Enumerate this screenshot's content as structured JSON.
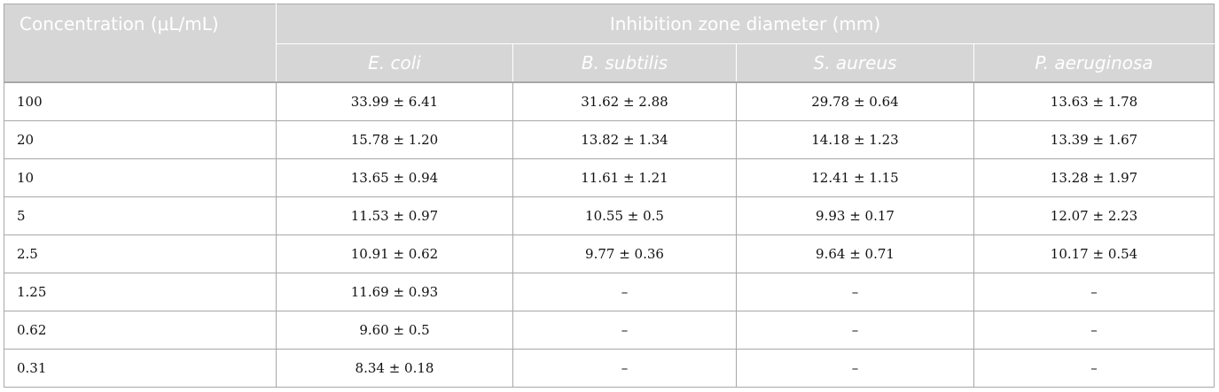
{
  "table": {
    "corner_header": "Concentration (μL/mL)",
    "group_header": "Inhibition zone diameter (mm)",
    "species": [
      "E. coli",
      "B. subtilis",
      "S. aureus",
      "P. aeruginosa"
    ],
    "rows": [
      {
        "concentration": "100",
        "values": [
          "33.99 ± 6.41",
          "31.62 ± 2.88",
          "29.78 ± 0.64",
          "13.63 ± 1.78"
        ]
      },
      {
        "concentration": "20",
        "values": [
          "15.78 ± 1.20",
          "13.82 ± 1.34",
          "14.18 ± 1.23",
          "13.39 ± 1.67"
        ]
      },
      {
        "concentration": "10",
        "values": [
          "13.65 ± 0.94",
          "11.61 ± 1.21",
          "12.41 ± 1.15",
          "13.28 ± 1.97"
        ]
      },
      {
        "concentration": "5",
        "values": [
          "11.53 ± 0.97",
          "10.55 ± 0.5",
          "9.93 ± 0.17",
          "12.07 ± 2.23"
        ]
      },
      {
        "concentration": "2.5",
        "values": [
          "10.91 ± 0.62",
          "9.77 ± 0.36",
          "9.64 ± 0.71",
          "10.17 ± 0.54"
        ]
      },
      {
        "concentration": "1.25",
        "values": [
          "11.69 ± 0.93",
          "–",
          "–",
          "–"
        ]
      },
      {
        "concentration": "0.62",
        "values": [
          "9.60 ± 0.5",
          "–",
          "–",
          "–"
        ]
      },
      {
        "concentration": "0.31",
        "values": [
          "8.34 ± 0.18",
          "–",
          "–",
          "–"
        ]
      }
    ]
  },
  "colors": {
    "header_background": "#d6d6d6",
    "header_text": "#ffffff",
    "border": "#a8a8a8"
  }
}
